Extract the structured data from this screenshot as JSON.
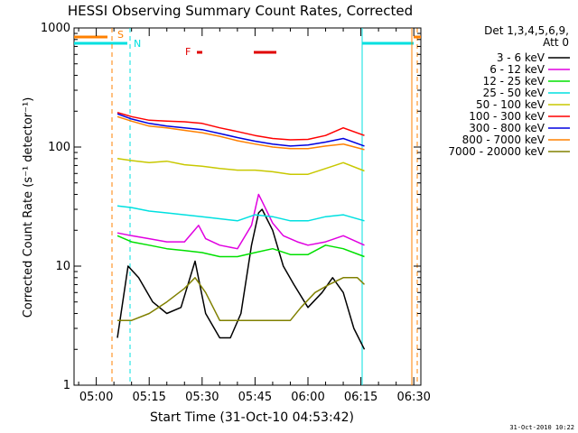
{
  "chart_data": {
    "type": "line",
    "title": "HESSI Observing Summary Count Rates, Corrected",
    "xlabel": "Start Time (31-Oct-10 04:53:42)",
    "ylabel": "Corrected Count Rate (s⁻¹ detector⁻¹)",
    "y_scale": "log",
    "ylim": [
      1,
      1000
    ],
    "xlim": [
      "04:53:42",
      "06:32:00"
    ],
    "x_tick_labels": [
      "05:00",
      "05:15",
      "05:30",
      "05:45",
      "06:00",
      "06:15",
      "06:30"
    ],
    "y_tick_labels": [
      "1",
      "10",
      "100",
      "1000"
    ],
    "legend_header": [
      "Det 1,3,4,5,6,9,",
      "Att 0"
    ],
    "legend_position": "right",
    "footer_date": "31-Oct-2010 10:22",
    "flags": {
      "saa_label": "S",
      "night_label": "N",
      "flare_label": "F"
    },
    "series": [
      {
        "name": "3 - 6 keV",
        "color": "#000000",
        "x": [
          "05:06",
          "05:09",
          "05:12",
          "05:16",
          "05:20",
          "05:24",
          "05:28",
          "05:31",
          "05:35",
          "05:38",
          "05:41",
          "05:44",
          "05:46",
          "05:47",
          "05:50",
          "05:53",
          "05:56",
          "06:00",
          "06:04",
          "06:07",
          "06:10",
          "06:13",
          "06:16"
        ],
        "values": [
          2.5,
          10.0,
          8.0,
          5.0,
          4.0,
          4.5,
          11.0,
          4.0,
          2.5,
          2.5,
          4.0,
          15.0,
          28.0,
          30.0,
          20.0,
          10.0,
          7.0,
          4.5,
          6.0,
          8.0,
          6.0,
          3.0,
          2.0
        ]
      },
      {
        "name": "6 - 12 keV",
        "color": "#e000e0",
        "x": [
          "05:06",
          "05:10",
          "05:15",
          "05:20",
          "05:25",
          "05:29",
          "05:31",
          "05:35",
          "05:40",
          "05:44",
          "05:46",
          "05:47",
          "05:50",
          "05:53",
          "05:57",
          "06:00",
          "06:05",
          "06:10",
          "06:16"
        ],
        "values": [
          19.0,
          18.0,
          17.0,
          16.0,
          16.0,
          22.0,
          17.0,
          15.0,
          14.0,
          22.0,
          40.0,
          35.0,
          23.0,
          18.0,
          16.0,
          15.0,
          16.0,
          18.0,
          15.0
        ]
      },
      {
        "name": "12 - 25 keV",
        "color": "#00e000",
        "x": [
          "05:06",
          "05:10",
          "05:15",
          "05:20",
          "05:25",
          "05:30",
          "05:35",
          "05:40",
          "05:45",
          "05:50",
          "05:55",
          "06:00",
          "06:05",
          "06:10",
          "06:16"
        ],
        "values": [
          18.0,
          16.0,
          15.0,
          14.0,
          13.5,
          13.0,
          12.0,
          12.0,
          13.0,
          14.0,
          12.5,
          12.5,
          15.0,
          14.0,
          12.0
        ]
      },
      {
        "name": "25 - 50 keV",
        "color": "#00e0e0",
        "x": [
          "05:06",
          "05:10",
          "05:15",
          "05:20",
          "05:25",
          "05:30",
          "05:35",
          "05:40",
          "05:45",
          "05:50",
          "05:55",
          "06:00",
          "06:05",
          "06:10",
          "06:16"
        ],
        "values": [
          32.0,
          31.0,
          29.0,
          28.0,
          27.0,
          26.0,
          25.0,
          24.0,
          27.0,
          26.0,
          24.0,
          24.0,
          26.0,
          27.0,
          24.0
        ]
      },
      {
        "name": "50 - 100 keV",
        "color": "#c8c800",
        "x": [
          "05:06",
          "05:10",
          "05:15",
          "05:20",
          "05:25",
          "05:30",
          "05:35",
          "05:40",
          "05:45",
          "05:50",
          "05:55",
          "06:00",
          "06:05",
          "06:10",
          "06:16"
        ],
        "values": [
          80.0,
          77.0,
          74.0,
          76.0,
          71.0,
          69.0,
          66.0,
          64.0,
          64.0,
          62.0,
          59.0,
          59.0,
          66.0,
          74.0,
          63.0
        ]
      },
      {
        "name": "100 - 300 keV",
        "color": "#ff0000",
        "x": [
          "05:06",
          "05:10",
          "05:15",
          "05:20",
          "05:25",
          "05:30",
          "05:35",
          "05:40",
          "05:45",
          "05:50",
          "05:55",
          "06:00",
          "06:05",
          "06:10",
          "06:16"
        ],
        "values": [
          195.0,
          180.0,
          168.0,
          165.0,
          163.0,
          158.0,
          145.0,
          135.0,
          125.0,
          118.0,
          115.0,
          116.0,
          125.0,
          145.0,
          125.0
        ]
      },
      {
        "name": "300 - 800 keV",
        "color": "#0000e0",
        "x": [
          "05:06",
          "05:10",
          "05:15",
          "05:20",
          "05:25",
          "05:30",
          "05:35",
          "05:40",
          "05:45",
          "05:50",
          "05:55",
          "06:00",
          "06:05",
          "06:10",
          "06:16"
        ],
        "values": [
          190.0,
          172.0,
          158.0,
          150.0,
          145.0,
          140.0,
          130.0,
          120.0,
          112.0,
          106.0,
          102.0,
          104.0,
          110.0,
          118.0,
          102.0
        ]
      },
      {
        "name": "800 - 7000 keV",
        "color": "#ff8000",
        "x": [
          "05:06",
          "05:10",
          "05:15",
          "05:20",
          "05:25",
          "05:30",
          "05:35",
          "05:40",
          "05:45",
          "05:50",
          "05:55",
          "06:00",
          "06:05",
          "06:10",
          "06:16"
        ],
        "values": [
          180.0,
          165.0,
          150.0,
          145.0,
          138.0,
          132.0,
          123.0,
          113.0,
          106.0,
          100.0,
          97.0,
          97.0,
          102.0,
          106.0,
          95.0
        ]
      },
      {
        "name": "7000 - 20000 keV",
        "color": "#808000",
        "x": [
          "05:06",
          "05:10",
          "05:15",
          "05:20",
          "05:25",
          "05:28",
          "05:31",
          "05:35",
          "05:40",
          "05:45",
          "05:50",
          "05:55",
          "05:58",
          "06:02",
          "06:06",
          "06:10",
          "06:14",
          "06:16"
        ],
        "values": [
          3.5,
          3.5,
          4.0,
          5.0,
          6.5,
          8.0,
          6.0,
          3.5,
          3.5,
          3.5,
          3.5,
          3.5,
          4.5,
          6.0,
          7.0,
          8.0,
          8.0,
          7.0
        ]
      }
    ]
  }
}
